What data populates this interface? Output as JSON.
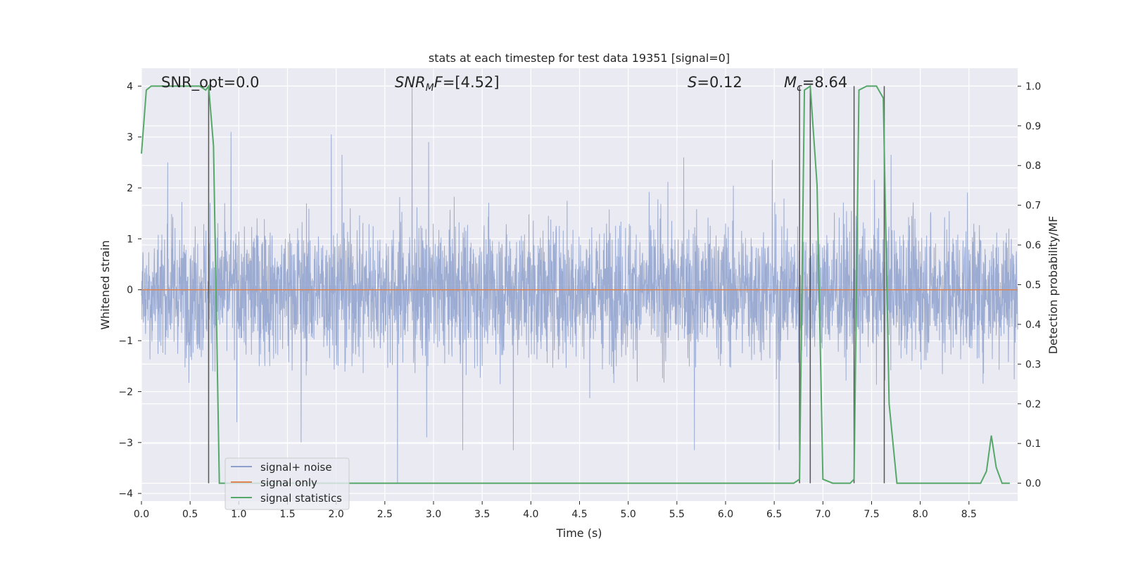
{
  "chart_data": {
    "type": "line",
    "title": "stats at each timestep for test data 19351 [signal=0]",
    "xlabel": "Time (s)",
    "ylabel": "Whitened strain",
    "y2label": "Detection probability/MF",
    "xlim": [
      0,
      9.0
    ],
    "ylim": [
      -4.15,
      4.35
    ],
    "y2lim": [
      -0.045,
      1.045
    ],
    "xticks": [
      "0.0",
      "0.5",
      "1.0",
      "1.5",
      "2.0",
      "2.5",
      "3.0",
      "3.5",
      "4.0",
      "4.5",
      "5.0",
      "5.5",
      "6.0",
      "6.5",
      "7.0",
      "7.5",
      "8.0",
      "8.5"
    ],
    "yticks": [
      "−4",
      "−3",
      "−2",
      "−1",
      "0",
      "1",
      "2",
      "3",
      "4"
    ],
    "y2ticks": [
      "0.0",
      "0.1",
      "0.2",
      "0.3",
      "0.4",
      "0.5",
      "0.6",
      "0.7",
      "0.8",
      "0.9",
      "1.0"
    ],
    "grid": true,
    "legend_position": "lower-left",
    "annotations": [
      {
        "text": "SNR_opt=0.0",
        "x": 0.2
      },
      {
        "text": "SNR_MF=[4.52]",
        "x": 2.6
      },
      {
        "text": "S=0.12",
        "x": 5.6
      },
      {
        "text": "M_c=8.64",
        "x": 6.6
      }
    ],
    "series": [
      {
        "name": "signal+ noise",
        "color": "#8da0cb",
        "kind": "noise",
        "envelope_typical": [
          -1.5,
          1.7
        ],
        "spikes": [
          [
            0.27,
            2.5
          ],
          [
            0.69,
            -2.5
          ],
          [
            0.92,
            3.1
          ],
          [
            0.98,
            -2.6
          ],
          [
            1.64,
            -3.0
          ],
          [
            1.95,
            3.05
          ],
          [
            2.06,
            2.65
          ],
          [
            2.63,
            -3.8
          ],
          [
            2.78,
            4.0
          ],
          [
            2.93,
            -2.9
          ],
          [
            2.95,
            2.9
          ],
          [
            3.3,
            -3.15
          ],
          [
            3.82,
            -3.15
          ],
          [
            5.57,
            2.6
          ],
          [
            5.68,
            -3.15
          ],
          [
            6.48,
            2.55
          ],
          [
            6.55,
            -3.15
          ],
          [
            7.7,
            2.65
          ]
        ]
      },
      {
        "name": "signal only",
        "color": "#dd8452",
        "kind": "flat",
        "value": 0
      },
      {
        "name": "signal statistics",
        "color": "#55a868",
        "axis": "right",
        "x": [
          0.0,
          0.05,
          0.1,
          0.2,
          0.4,
          0.6,
          0.66,
          0.69,
          0.74,
          0.8,
          0.85,
          1.0,
          2.0,
          3.0,
          4.0,
          5.0,
          6.0,
          6.7,
          6.76,
          6.81,
          6.87,
          6.94,
          7.0,
          7.1,
          7.28,
          7.32,
          7.37,
          7.45,
          7.55,
          7.62,
          7.68,
          7.76,
          8.0,
          8.5,
          8.62,
          8.68,
          8.73,
          8.78,
          8.84,
          8.92
        ],
        "values": [
          0.83,
          0.99,
          1.0,
          1.0,
          1.0,
          1.0,
          0.99,
          1.0,
          0.85,
          0.0,
          0.0,
          0.0,
          0.0,
          0.0,
          0.0,
          0.0,
          0.0,
          0.0,
          0.01,
          0.99,
          1.0,
          0.75,
          0.01,
          0.0,
          0.0,
          0.01,
          0.99,
          1.0,
          1.0,
          0.97,
          0.2,
          0.0,
          0.0,
          0.0,
          0.0,
          0.03,
          0.12,
          0.04,
          0.0,
          0.0
        ]
      }
    ],
    "vertical_markers": [
      0.69,
      6.76,
      6.87,
      7.32,
      7.63
    ]
  }
}
